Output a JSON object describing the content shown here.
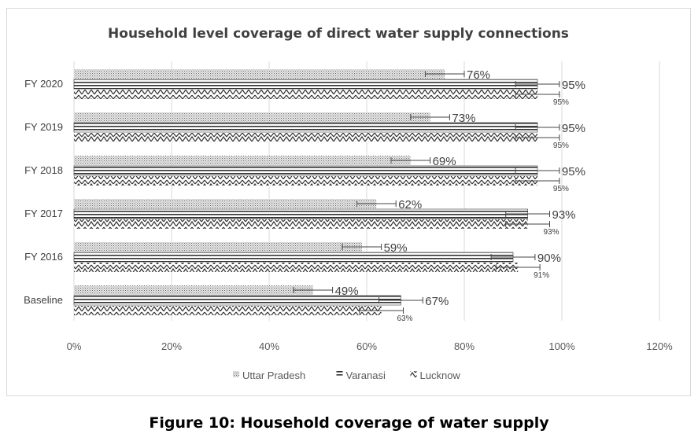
{
  "chart_data": {
    "type": "bar",
    "orientation": "horizontal",
    "title": "Household level coverage of direct water supply connections",
    "categories": [
      "FY 2020",
      "FY 2019",
      "FY 2018",
      "FY 2017",
      "FY 2016",
      "Baseline"
    ],
    "series": [
      {
        "name": "Uttar Pradesh",
        "pattern": "dotted",
        "values": [
          76,
          73,
          69,
          62,
          59,
          49
        ],
        "labels": [
          "76%",
          "73%",
          "69%",
          "62%",
          "59%",
          "49%"
        ]
      },
      {
        "name": "Varanasi",
        "pattern": "horizontal-lines",
        "values": [
          95,
          95,
          95,
          93,
          90,
          67
        ],
        "labels": [
          "95%",
          "95%",
          "95%",
          "93%",
          "90%",
          "67%"
        ]
      },
      {
        "name": "Lucknow",
        "pattern": "zigzag",
        "values": [
          95,
          95,
          95,
          93,
          91,
          63
        ],
        "labels": [
          "95%",
          "95%",
          "95%",
          "93%",
          "91%",
          "63%"
        ]
      }
    ],
    "error_bars": "approx ±5%",
    "xlim": [
      0,
      120
    ],
    "xticks": [
      "0%",
      "20%",
      "40%",
      "60%",
      "80%",
      "100%",
      "120%"
    ],
    "grid": "vertical",
    "legend": "bottom"
  },
  "caption": "Figure 10: Household coverage of water supply"
}
